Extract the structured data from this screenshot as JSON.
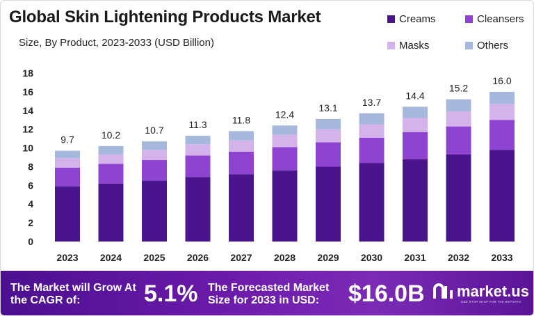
{
  "chart_data": {
    "type": "bar",
    "stacked": true,
    "title": "Global Skin Lightening Products Market",
    "subtitle": "Size, By Product, 2023-2033 (USD Billion)",
    "categories": [
      "2023",
      "2024",
      "2025",
      "2026",
      "2027",
      "2028",
      "2029",
      "2030",
      "2031",
      "2032",
      "2033"
    ],
    "totals": [
      "9.7",
      "10.2",
      "10.7",
      "11.3",
      "11.8",
      "12.4",
      "13.1",
      "13.7",
      "14.4",
      "15.2",
      "16.0"
    ],
    "series": [
      {
        "name": "Creams",
        "color": "#4a148c",
        "values": [
          5.9,
          6.2,
          6.5,
          6.9,
          7.2,
          7.6,
          8.0,
          8.4,
          8.8,
          9.3,
          9.8
        ]
      },
      {
        "name": "Cleansers",
        "color": "#8e44d0",
        "values": [
          2.0,
          2.1,
          2.2,
          2.3,
          2.4,
          2.5,
          2.6,
          2.7,
          2.9,
          3.0,
          3.2
        ]
      },
      {
        "name": "Masks",
        "color": "#d4b2ea",
        "values": [
          1.0,
          1.0,
          1.1,
          1.2,
          1.2,
          1.3,
          1.4,
          1.4,
          1.5,
          1.6,
          1.7
        ]
      },
      {
        "name": "Others",
        "color": "#a6b9dc",
        "values": [
          0.8,
          0.9,
          0.9,
          0.9,
          1.0,
          1.0,
          1.1,
          1.2,
          1.2,
          1.3,
          1.3
        ]
      }
    ],
    "ylim": [
      0,
      18
    ],
    "yticks": [
      "0",
      "2",
      "4",
      "6",
      "8",
      "10",
      "12",
      "14",
      "16",
      "18"
    ],
    "legend_position": "top-right",
    "grid": false
  },
  "footer": {
    "cagr_text": "The Market will Grow At the CAGR of:",
    "cagr_value": "5.1%",
    "forecast_text": "The Forecasted Market Size for 2033 in USD:",
    "forecast_value": "$16.0B",
    "brand_name": "market.us",
    "brand_tagline": "ONE STOP SHOP FOR THE REPORTS"
  },
  "colors": {
    "footer_bg": "#5a1496"
  }
}
